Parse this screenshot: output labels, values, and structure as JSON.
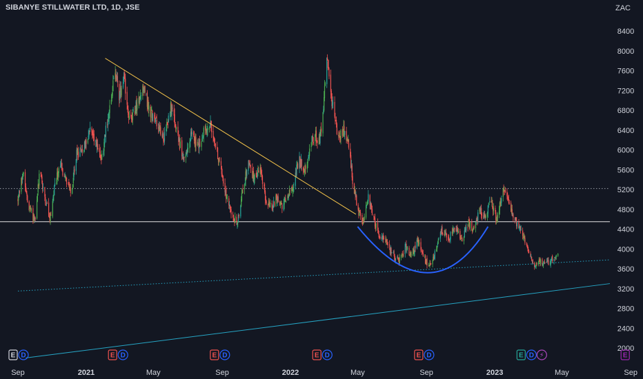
{
  "header": {
    "title": "SIBANYE STILLWATER LTD, 1D, JSE",
    "currency": "ZAC"
  },
  "chart_data": {
    "type": "candlestick",
    "title": "SIBANYE STILLWATER LTD, 1D, JSE",
    "ylabel": "ZAC",
    "ylim": [
      1800,
      8800
    ],
    "y_ticks": [
      2000,
      2400,
      2800,
      3200,
      3600,
      4000,
      4400,
      4800,
      5200,
      5600,
      6000,
      6400,
      6800,
      7200,
      7600,
      8000,
      8400
    ],
    "x_ticks": [
      {
        "label": "Sep",
        "date": "2020-09-01",
        "bold": false
      },
      {
        "label": "2021",
        "date": "2021-01-01",
        "bold": true
      },
      {
        "label": "May",
        "date": "2021-05-01",
        "bold": false
      },
      {
        "label": "Sep",
        "date": "2021-09-01",
        "bold": false
      },
      {
        "label": "2022",
        "date": "2022-01-01",
        "bold": true
      },
      {
        "label": "May",
        "date": "2022-05-01",
        "bold": false
      },
      {
        "label": "Sep",
        "date": "2022-09-01",
        "bold": false
      },
      {
        "label": "2023",
        "date": "2023-01-01",
        "bold": true
      },
      {
        "label": "May",
        "date": "2023-05-01",
        "bold": false
      },
      {
        "label": "Sep",
        "date": "2023-09-01",
        "bold": false
      }
    ],
    "xlim": [
      "2020-09-01",
      "2023-10-25"
    ],
    "price_path": [
      [
        "2020-09-01",
        5000
      ],
      [
        "2020-09-10",
        5550
      ],
      [
        "2020-09-20",
        4900
      ],
      [
        "2020-10-01",
        4550
      ],
      [
        "2020-10-10",
        5600
      ],
      [
        "2020-10-20",
        5000
      ],
      [
        "2020-10-28",
        4580
      ],
      [
        "2020-11-05",
        5200
      ],
      [
        "2020-11-15",
        5700
      ],
      [
        "2020-11-25",
        5400
      ],
      [
        "2020-12-05",
        5100
      ],
      [
        "2020-12-15",
        5900
      ],
      [
        "2020-12-28",
        6100
      ],
      [
        "2021-01-08",
        6400
      ],
      [
        "2021-01-18",
        6200
      ],
      [
        "2021-01-28",
        5800
      ],
      [
        "2021-02-08",
        6600
      ],
      [
        "2021-02-22",
        7600
      ],
      [
        "2021-03-01",
        7050
      ],
      [
        "2021-03-10",
        7400
      ],
      [
        "2021-03-20",
        6550
      ],
      [
        "2021-04-01",
        6900
      ],
      [
        "2021-04-12",
        7300
      ],
      [
        "2021-04-25",
        6800
      ],
      [
        "2021-05-08",
        6500
      ],
      [
        "2021-05-20",
        6200
      ],
      [
        "2021-06-01",
        6900
      ],
      [
        "2021-06-12",
        6300
      ],
      [
        "2021-06-25",
        5800
      ],
      [
        "2021-07-08",
        6300
      ],
      [
        "2021-07-20",
        6100
      ],
      [
        "2021-08-01",
        6400
      ],
      [
        "2021-08-12",
        6500
      ],
      [
        "2021-08-20",
        6100
      ],
      [
        "2021-09-01",
        5500
      ],
      [
        "2021-09-10",
        5000
      ],
      [
        "2021-09-20",
        4650
      ],
      [
        "2021-09-28",
        4550
      ],
      [
        "2021-10-08",
        5200
      ],
      [
        "2021-10-18",
        5750
      ],
      [
        "2021-10-28",
        5400
      ],
      [
        "2021-11-08",
        5600
      ],
      [
        "2021-11-18",
        5000
      ],
      [
        "2021-11-28",
        4800
      ],
      [
        "2021-12-06",
        5050
      ],
      [
        "2021-12-16",
        4850
      ],
      [
        "2021-12-28",
        5100
      ],
      [
        "2022-01-06",
        5300
      ],
      [
        "2022-01-16",
        5800
      ],
      [
        "2022-01-26",
        5600
      ],
      [
        "2022-02-05",
        6100
      ],
      [
        "2022-02-15",
        6300
      ],
      [
        "2022-02-22",
        6150
      ],
      [
        "2022-03-01",
        6900
      ],
      [
        "2022-03-07",
        7900
      ],
      [
        "2022-03-12",
        7300
      ],
      [
        "2022-03-20",
        6700
      ],
      [
        "2022-03-28",
        6200
      ],
      [
        "2022-04-06",
        6450
      ],
      [
        "2022-04-15",
        6100
      ],
      [
        "2022-04-22",
        5400
      ],
      [
        "2022-05-01",
        4800
      ],
      [
        "2022-05-10",
        4500
      ],
      [
        "2022-05-20",
        5100
      ],
      [
        "2022-05-28",
        4650
      ],
      [
        "2022-06-08",
        4300
      ],
      [
        "2022-06-20",
        4150
      ],
      [
        "2022-07-02",
        3900
      ],
      [
        "2022-07-14",
        3750
      ],
      [
        "2022-07-25",
        4050
      ],
      [
        "2022-08-05",
        3850
      ],
      [
        "2022-08-16",
        4200
      ],
      [
        "2022-08-28",
        3800
      ],
      [
        "2022-09-08",
        3650
      ],
      [
        "2022-09-18",
        3950
      ],
      [
        "2022-09-28",
        4350
      ],
      [
        "2022-10-10",
        4200
      ],
      [
        "2022-10-22",
        4450
      ],
      [
        "2022-11-03",
        4150
      ],
      [
        "2022-11-15",
        4500
      ],
      [
        "2022-11-25",
        4400
      ],
      [
        "2022-12-05",
        4800
      ],
      [
        "2022-12-15",
        4650
      ],
      [
        "2022-12-25",
        4950
      ],
      [
        "2023-01-05",
        4600
      ],
      [
        "2023-01-12",
        5000
      ],
      [
        "2023-01-18",
        5200
      ],
      [
        "2023-01-26",
        4950
      ],
      [
        "2023-02-05",
        4600
      ],
      [
        "2023-02-15",
        4450
      ],
      [
        "2023-02-25",
        4100
      ],
      [
        "2023-03-06",
        3800
      ],
      [
        "2023-03-14",
        3650
      ],
      [
        "2023-03-24",
        3750
      ],
      [
        "2023-04-03",
        3700
      ],
      [
        "2023-04-14",
        3800
      ],
      [
        "2023-04-24",
        3950
      ]
    ],
    "drawings": [
      {
        "type": "trendline",
        "color": "#f0c04a",
        "style": "solid",
        "points": [
          [
            "2021-02-04",
            7850
          ],
          [
            "2022-04-28",
            4700
          ]
        ]
      },
      {
        "type": "horizontal_line",
        "color": "#e6e6e6",
        "style": "solid",
        "y": 4550
      },
      {
        "type": "horizontal_line",
        "color": "#9aa0a8",
        "style": "dotted",
        "y": 5220
      },
      {
        "type": "trendline",
        "color": "#26a6c6",
        "style": "solid",
        "points": [
          [
            "2020-09-15",
            1800
          ],
          [
            "2023-10-25",
            3300
          ]
        ]
      },
      {
        "type": "trendline",
        "color": "#26a6c6",
        "style": "dotted",
        "points": [
          [
            "2020-09-01",
            3150
          ],
          [
            "2023-10-25",
            3780
          ]
        ]
      },
      {
        "type": "arc",
        "color": "#2962ff",
        "style": "solid",
        "points": [
          [
            "2022-05-01",
            4450
          ],
          [
            "2022-09-03",
            3520
          ],
          [
            "2022-12-20",
            4450
          ]
        ]
      }
    ],
    "events": [
      {
        "date": "2020-09-01",
        "badges": [
          "E",
          "D"
        ]
      },
      {
        "date": "2021-02-27",
        "badges": [
          "E",
          "D"
        ]
      },
      {
        "date": "2021-08-28",
        "badges": [
          "E",
          "D"
        ]
      },
      {
        "date": "2022-02-27",
        "badges": [
          "E",
          "D"
        ]
      },
      {
        "date": "2022-08-28",
        "badges": [
          "E",
          "D"
        ]
      },
      {
        "date": "2023-02-27",
        "badges": [
          "E",
          "D",
          "⚡"
        ]
      },
      {
        "date": "2023-09-01",
        "badges": [
          "E"
        ]
      }
    ],
    "colors": {
      "background": "#131722",
      "up": "#26a69a",
      "up_alt": "#4caf50",
      "down": "#ef5350",
      "event_earnings": "#ef5350",
      "event_dividend": "#2962ff",
      "event_split": "#ab47bc",
      "event_future": "#9c27b0",
      "event_past_gray": "#d1d4dc",
      "event_teal": "#26a69a"
    }
  }
}
